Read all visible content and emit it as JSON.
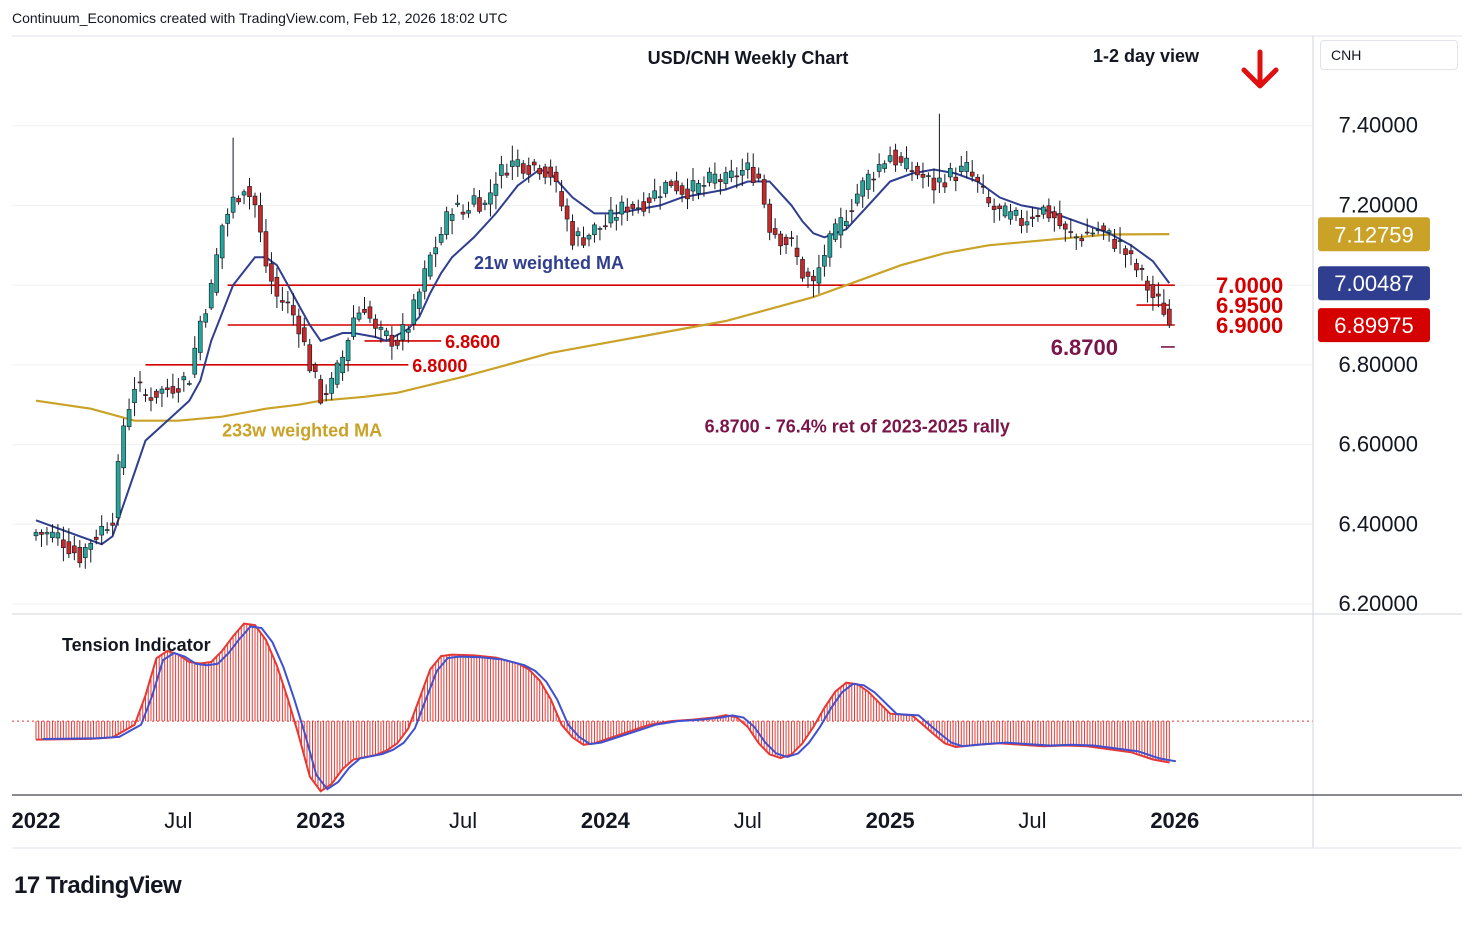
{
  "header": {
    "credit": "Continuum_Economics created with TradingView.com, Feb 12, 2026 18:02 UTC"
  },
  "symbol_box": {
    "label": "CNH"
  },
  "brand": {
    "logo_mark": "17",
    "name": "TradingView"
  },
  "colors": {
    "up_candle": "#26a69a",
    "down_candle": "#c62828",
    "wick": "#131722",
    "ma21": "#2f3e8f",
    "ma233": "#c9a227",
    "level": "#d50000",
    "fib": "#7b1448",
    "tension_red": "#e53935",
    "tension_blue": "#3f51d0",
    "arrow": "#e01010",
    "axis_text": "#131722",
    "grid": "#eef0f3"
  },
  "chart_data": {
    "type": "candlestick",
    "title": "USD/CNH Weekly Chart",
    "subtitle": "1-2 day view",
    "direction_icon": "down-arrow-icon",
    "y_axis": {
      "range": [
        6.175,
        7.625
      ],
      "ticks": [
        {
          "value": 7.4,
          "label": "7.40000"
        },
        {
          "value": 7.2,
          "label": "7.20000"
        },
        {
          "value": 7.0,
          "label": "7.00000"
        },
        {
          "value": 6.8,
          "label": "6.80000"
        },
        {
          "value": 6.6,
          "label": "6.60000"
        },
        {
          "value": 6.4,
          "label": "6.40000"
        },
        {
          "value": 6.2,
          "label": "6.20000"
        }
      ]
    },
    "x_axis": {
      "week_range": [
        0,
        207
      ],
      "ticks": [
        {
          "week": 0,
          "label": "2022",
          "bold": true
        },
        {
          "week": 26,
          "label": "Jul",
          "bold": false
        },
        {
          "week": 52,
          "label": "2023",
          "bold": true
        },
        {
          "week": 78,
          "label": "Jul",
          "bold": false
        },
        {
          "week": 104,
          "label": "2024",
          "bold": true
        },
        {
          "week": 130,
          "label": "Jul",
          "bold": false
        },
        {
          "week": 156,
          "label": "2025",
          "bold": true
        },
        {
          "week": 182,
          "label": "Jul",
          "bold": false
        },
        {
          "week": 208,
          "label": "2026",
          "bold": true
        }
      ]
    },
    "price_anchors": [
      [
        0,
        6.38
      ],
      [
        4,
        6.37
      ],
      [
        8,
        6.32
      ],
      [
        10,
        6.36
      ],
      [
        14,
        6.42
      ],
      [
        16,
        6.65
      ],
      [
        18,
        6.75
      ],
      [
        20,
        6.72
      ],
      [
        24,
        6.74
      ],
      [
        28,
        6.77
      ],
      [
        30,
        6.91
      ],
      [
        32,
        6.99
      ],
      [
        34,
        7.15
      ],
      [
        36,
        7.21
      ],
      [
        38,
        7.25
      ],
      [
        40,
        7.2
      ],
      [
        42,
        7.05
      ],
      [
        44,
        6.97
      ],
      [
        46,
        6.95
      ],
      [
        48,
        6.9
      ],
      [
        50,
        6.8
      ],
      [
        52,
        6.72
      ],
      [
        54,
        6.75
      ],
      [
        56,
        6.82
      ],
      [
        58,
        6.92
      ],
      [
        60,
        6.95
      ],
      [
        62,
        6.88
      ],
      [
        64,
        6.87
      ],
      [
        66,
        6.86
      ],
      [
        68,
        6.9
      ],
      [
        70,
        6.98
      ],
      [
        72,
        7.07
      ],
      [
        74,
        7.13
      ],
      [
        76,
        7.2
      ],
      [
        78,
        7.18
      ],
      [
        80,
        7.22
      ],
      [
        82,
        7.2
      ],
      [
        84,
        7.27
      ],
      [
        86,
        7.3
      ],
      [
        88,
        7.31
      ],
      [
        90,
        7.3
      ],
      [
        92,
        7.3
      ],
      [
        94,
        7.28
      ],
      [
        96,
        7.2
      ],
      [
        98,
        7.12
      ],
      [
        100,
        7.12
      ],
      [
        102,
        7.14
      ],
      [
        104,
        7.15
      ],
      [
        106,
        7.18
      ],
      [
        108,
        7.2
      ],
      [
        110,
        7.2
      ],
      [
        112,
        7.22
      ],
      [
        114,
        7.24
      ],
      [
        116,
        7.26
      ],
      [
        118,
        7.24
      ],
      [
        120,
        7.24
      ],
      [
        122,
        7.25
      ],
      [
        124,
        7.27
      ],
      [
        126,
        7.26
      ],
      [
        128,
        7.28
      ],
      [
        130,
        7.29
      ],
      [
        132,
        7.27
      ],
      [
        134,
        7.15
      ],
      [
        136,
        7.12
      ],
      [
        138,
        7.1
      ],
      [
        140,
        7.03
      ],
      [
        142,
        7.0
      ],
      [
        144,
        7.08
      ],
      [
        146,
        7.13
      ],
      [
        148,
        7.18
      ],
      [
        150,
        7.23
      ],
      [
        152,
        7.27
      ],
      [
        154,
        7.3
      ],
      [
        156,
        7.33
      ],
      [
        158,
        7.3
      ],
      [
        160,
        7.29
      ],
      [
        162,
        7.27
      ],
      [
        164,
        7.25
      ],
      [
        166,
        7.27
      ],
      [
        168,
        7.28
      ],
      [
        170,
        7.29
      ],
      [
        172,
        7.25
      ],
      [
        174,
        7.2
      ],
      [
        176,
        7.18
      ],
      [
        178,
        7.17
      ],
      [
        180,
        7.16
      ],
      [
        182,
        7.18
      ],
      [
        184,
        7.19
      ],
      [
        186,
        7.17
      ],
      [
        188,
        7.13
      ],
      [
        190,
        7.12
      ],
      [
        192,
        7.13
      ],
      [
        194,
        7.14
      ],
      [
        196,
        7.12
      ],
      [
        198,
        7.1
      ],
      [
        200,
        7.06
      ],
      [
        202,
        7.02
      ],
      [
        204,
        6.97
      ],
      [
        206,
        6.94
      ],
      [
        207,
        6.9
      ]
    ],
    "extremes": [
      {
        "week": 7,
        "value": 6.31
      },
      {
        "week": 36,
        "value": 7.37
      },
      {
        "week": 52,
        "value": 6.7
      },
      {
        "week": 87,
        "value": 7.35
      },
      {
        "week": 142,
        "value": 6.97
      },
      {
        "week": 165,
        "value": 7.43
      }
    ],
    "last_price": 6.89975,
    "ma21": {
      "label": "21w weighted MA",
      "last_value": 7.00487,
      "points": [
        [
          0,
          6.41
        ],
        [
          6,
          6.38
        ],
        [
          12,
          6.35
        ],
        [
          14,
          6.37
        ],
        [
          18,
          6.53
        ],
        [
          20,
          6.61
        ],
        [
          24,
          6.66
        ],
        [
          28,
          6.71
        ],
        [
          30,
          6.76
        ],
        [
          32,
          6.86
        ],
        [
          36,
          7.0
        ],
        [
          40,
          7.07
        ],
        [
          42,
          7.07
        ],
        [
          44,
          7.05
        ],
        [
          46,
          7.0
        ],
        [
          48,
          6.95
        ],
        [
          50,
          6.9
        ],
        [
          52,
          6.86
        ],
        [
          54,
          6.87
        ],
        [
          56,
          6.88
        ],
        [
          58,
          6.88
        ],
        [
          62,
          6.87
        ],
        [
          64,
          6.86
        ],
        [
          68,
          6.89
        ],
        [
          70,
          6.92
        ],
        [
          72,
          6.98
        ],
        [
          74,
          7.03
        ],
        [
          76,
          7.07
        ],
        [
          80,
          7.12
        ],
        [
          84,
          7.18
        ],
        [
          88,
          7.25
        ],
        [
          92,
          7.29
        ],
        [
          94,
          7.28
        ],
        [
          98,
          7.22
        ],
        [
          102,
          7.18
        ],
        [
          106,
          7.18
        ],
        [
          110,
          7.19
        ],
        [
          114,
          7.2
        ],
        [
          118,
          7.22
        ],
        [
          122,
          7.23
        ],
        [
          126,
          7.24
        ],
        [
          130,
          7.26
        ],
        [
          134,
          7.26
        ],
        [
          138,
          7.2
        ],
        [
          140,
          7.16
        ],
        [
          142,
          7.13
        ],
        [
          144,
          7.12
        ],
        [
          148,
          7.14
        ],
        [
          152,
          7.2
        ],
        [
          156,
          7.26
        ],
        [
          160,
          7.28
        ],
        [
          164,
          7.29
        ],
        [
          168,
          7.28
        ],
        [
          172,
          7.26
        ],
        [
          176,
          7.22
        ],
        [
          180,
          7.2
        ],
        [
          184,
          7.19
        ],
        [
          188,
          7.17
        ],
        [
          192,
          7.15
        ],
        [
          196,
          7.13
        ],
        [
          200,
          7.1
        ],
        [
          204,
          7.06
        ],
        [
          207,
          7.005
        ]
      ]
    },
    "ma233": {
      "label": "233w weighted MA",
      "last_value": 7.12759,
      "points": [
        [
          0,
          6.71
        ],
        [
          10,
          6.69
        ],
        [
          18,
          6.66
        ],
        [
          26,
          6.66
        ],
        [
          34,
          6.67
        ],
        [
          42,
          6.69
        ],
        [
          48,
          6.7
        ],
        [
          52,
          6.71
        ],
        [
          60,
          6.72
        ],
        [
          66,
          6.73
        ],
        [
          72,
          6.75
        ],
        [
          78,
          6.77
        ],
        [
          86,
          6.8
        ],
        [
          94,
          6.83
        ],
        [
          102,
          6.85
        ],
        [
          110,
          6.87
        ],
        [
          118,
          6.89
        ],
        [
          126,
          6.91
        ],
        [
          134,
          6.94
        ],
        [
          142,
          6.97
        ],
        [
          150,
          7.01
        ],
        [
          158,
          7.05
        ],
        [
          166,
          7.08
        ],
        [
          174,
          7.1
        ],
        [
          182,
          7.11
        ],
        [
          190,
          7.12
        ],
        [
          196,
          7.127
        ],
        [
          207,
          7.128
        ]
      ]
    },
    "levels": [
      {
        "value": 7.0,
        "label": "7.0000",
        "from_week": 35,
        "to_week": 208
      },
      {
        "value": 6.95,
        "label": "6.9500",
        "from_week": 201,
        "to_week": 207
      },
      {
        "value": 6.9,
        "label": "6.9000",
        "from_week": 35,
        "to_week": 208
      },
      {
        "value": 6.86,
        "label": "6.8600",
        "from_week": 60,
        "to_week": 74
      },
      {
        "value": 6.8,
        "label": "6.8000",
        "from_week": 20,
        "to_week": 68
      }
    ],
    "fib_level": {
      "value": 6.87,
      "label": "6.8700",
      "from_week": 200,
      "to_week": 208
    },
    "annotations": [
      {
        "text": "21w weighted MA",
        "week": 80,
        "value": 7.04,
        "color": "ma21"
      },
      {
        "text": "233w weighted MA",
        "week": 34,
        "value": 6.62,
        "color": "ma233"
      },
      {
        "text": "6.8700 - 76.4% ret of 2023-2025 rally",
        "week": 150,
        "value": 6.63,
        "color": "fib"
      }
    ],
    "badges": [
      {
        "label": "7.12759",
        "value": 7.12759,
        "color": "ma233"
      },
      {
        "label": "7.00487",
        "value": 7.00487,
        "color": "ma21"
      },
      {
        "label": "6.89975",
        "value": 6.89975,
        "color": "level"
      }
    ],
    "tension_indicator": {
      "label": "Tension Indicator",
      "range": [
        -1.0,
        1.45
      ],
      "points": [
        [
          0,
          -0.25
        ],
        [
          10,
          -0.24
        ],
        [
          14,
          -0.22
        ],
        [
          18,
          -0.05
        ],
        [
          20,
          0.35
        ],
        [
          22,
          0.85
        ],
        [
          24,
          0.95
        ],
        [
          26,
          0.9
        ],
        [
          28,
          0.8
        ],
        [
          30,
          0.78
        ],
        [
          32,
          0.8
        ],
        [
          34,
          0.95
        ],
        [
          36,
          1.15
        ],
        [
          38,
          1.32
        ],
        [
          40,
          1.3
        ],
        [
          42,
          1.1
        ],
        [
          44,
          0.75
        ],
        [
          46,
          0.3
        ],
        [
          48,
          -0.2
        ],
        [
          50,
          -0.75
        ],
        [
          52,
          -0.95
        ],
        [
          54,
          -0.85
        ],
        [
          56,
          -0.65
        ],
        [
          58,
          -0.52
        ],
        [
          62,
          -0.46
        ],
        [
          64,
          -0.4
        ],
        [
          66,
          -0.3
        ],
        [
          68,
          -0.1
        ],
        [
          70,
          0.3
        ],
        [
          72,
          0.7
        ],
        [
          74,
          0.88
        ],
        [
          76,
          0.9
        ],
        [
          80,
          0.89
        ],
        [
          84,
          0.86
        ],
        [
          88,
          0.78
        ],
        [
          90,
          0.7
        ],
        [
          92,
          0.55
        ],
        [
          94,
          0.3
        ],
        [
          96,
          -0.05
        ],
        [
          98,
          -0.22
        ],
        [
          100,
          -0.32
        ],
        [
          102,
          -0.3
        ],
        [
          104,
          -0.25
        ],
        [
          108,
          -0.15
        ],
        [
          112,
          -0.05
        ],
        [
          116,
          0.0
        ],
        [
          120,
          0.02
        ],
        [
          124,
          0.05
        ],
        [
          126,
          0.08
        ],
        [
          128,
          0.05
        ],
        [
          130,
          -0.08
        ],
        [
          132,
          -0.3
        ],
        [
          134,
          -0.45
        ],
        [
          136,
          -0.5
        ],
        [
          138,
          -0.45
        ],
        [
          140,
          -0.3
        ],
        [
          142,
          -0.08
        ],
        [
          144,
          0.18
        ],
        [
          146,
          0.4
        ],
        [
          148,
          0.52
        ],
        [
          150,
          0.5
        ],
        [
          152,
          0.4
        ],
        [
          154,
          0.25
        ],
        [
          156,
          0.1
        ],
        [
          158,
          0.09
        ],
        [
          160,
          0.08
        ],
        [
          162,
          -0.05
        ],
        [
          164,
          -0.18
        ],
        [
          166,
          -0.3
        ],
        [
          168,
          -0.35
        ],
        [
          172,
          -0.32
        ],
        [
          176,
          -0.3
        ],
        [
          180,
          -0.32
        ],
        [
          184,
          -0.34
        ],
        [
          188,
          -0.33
        ],
        [
          192,
          -0.34
        ],
        [
          196,
          -0.38
        ],
        [
          200,
          -0.42
        ],
        [
          204,
          -0.52
        ],
        [
          207,
          -0.56
        ]
      ]
    }
  }
}
